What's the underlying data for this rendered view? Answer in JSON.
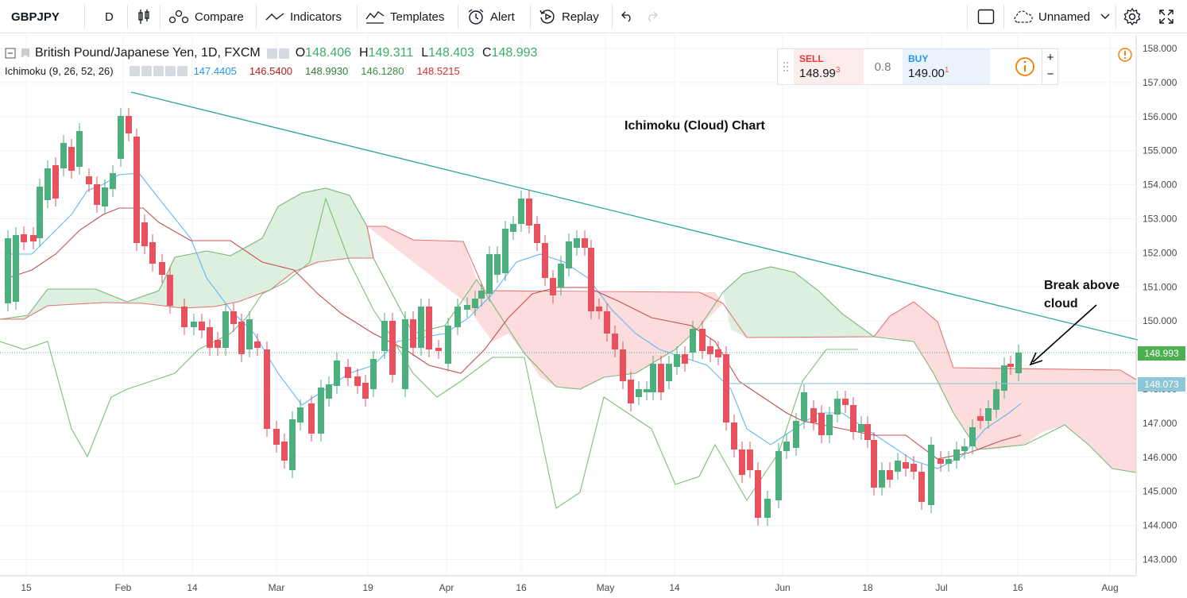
{
  "toolbar": {
    "symbol": "GBPJPY",
    "interval": "D",
    "compare": "Compare",
    "indicators": "Indicators",
    "templates": "Templates",
    "alert": "Alert",
    "replay": "Replay",
    "layout_name": "Unnamed"
  },
  "legend": {
    "title": "British Pound/Japanese Yen, 1D, FXCM",
    "o_label": "O",
    "o": "148.406",
    "h_label": "H",
    "h": "149.311",
    "l_label": "L",
    "l": "148.403",
    "c_label": "C",
    "c": "148.993",
    "indicator_name": "Ichimoku (9, 26, 52, 26)",
    "ind_values": [
      "147.4405",
      "146.5400",
      "148.9930",
      "146.1280",
      "148.5215"
    ],
    "ind_colors": [
      "#2196f3",
      "#b71c1c",
      "#2e7d32",
      "#388e3c",
      "#d32f2f"
    ]
  },
  "trade": {
    "sell_label": "SELL",
    "sell_main": "148.99",
    "sell_sup": "3",
    "spread": "0.8",
    "buy_label": "BUY",
    "buy_main": "149.00",
    "buy_sup": "1",
    "plus": "+",
    "minus": "−"
  },
  "annotations": {
    "chart_title": "Ichimoku (Cloud) Chart",
    "break_line1": "Break above",
    "break_line2": "cloud"
  },
  "price_axis": [
    "158.000",
    "157.000",
    "156.000",
    "155.000",
    "154.000",
    "153.000",
    "152.000",
    "151.000",
    "150.000",
    "149.000",
    "148.000",
    "147.000",
    "146.000",
    "145.000",
    "144.000",
    "143.000"
  ],
  "time_axis": [
    "15",
    "Feb",
    "14",
    "Mar",
    "19",
    "Apr",
    "16",
    "May",
    "14",
    "Jun",
    "18",
    "Jul",
    "16",
    "Aug"
  ],
  "price_tags": {
    "last": "148.993",
    "line": "148.073"
  },
  "colors": {
    "up": "#4caf7d",
    "down": "#e8525f",
    "cloud_up": "#d7ecd8",
    "cloud_down": "#fbd6d6",
    "trend": "#26a69a"
  }
}
